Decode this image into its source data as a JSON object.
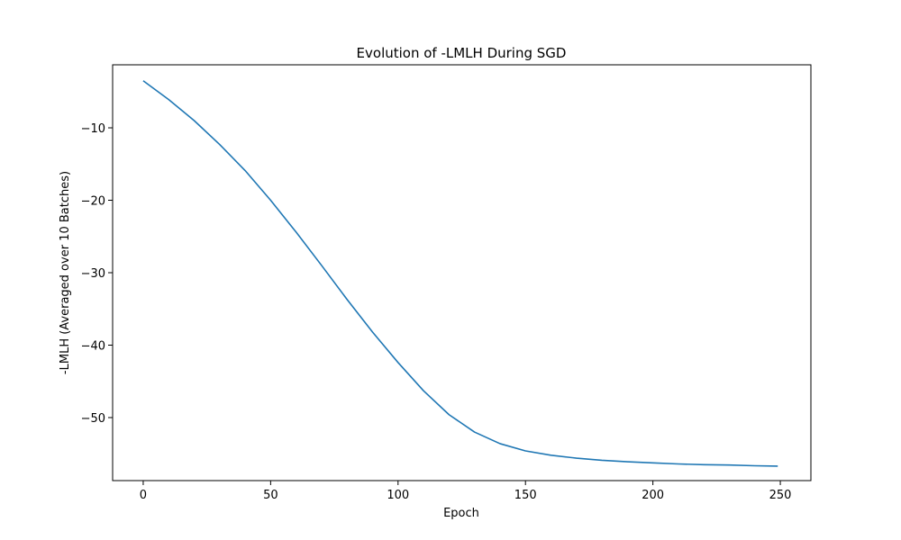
{
  "chart_data": {
    "type": "line",
    "title": "Evolution of -LMLH During SGD",
    "xlabel": "Epoch",
    "ylabel": "-LMLH (Averaged over 10 Batches)",
    "xlim": [
      -12,
      262
    ],
    "ylim": [
      -58.7,
      -1.3
    ],
    "xticks": [
      0,
      50,
      100,
      150,
      200,
      250
    ],
    "yticks": [
      -10,
      -20,
      -30,
      -40,
      -50
    ],
    "grid": false,
    "series": [
      {
        "color": "#1f77b4",
        "x": [
          0,
          10,
          20,
          30,
          40,
          50,
          60,
          70,
          80,
          90,
          100,
          110,
          120,
          130,
          140,
          150,
          160,
          170,
          180,
          190,
          200,
          210,
          220,
          230,
          240,
          249
        ],
        "y": [
          -3.5,
          -6.1,
          -9.0,
          -12.3,
          -15.9,
          -20.0,
          -24.4,
          -29.0,
          -33.7,
          -38.2,
          -42.4,
          -46.3,
          -49.6,
          -52.0,
          -53.6,
          -54.6,
          -55.2,
          -55.6,
          -55.9,
          -56.1,
          -56.25,
          -56.4,
          -56.5,
          -56.55,
          -56.65,
          -56.7
        ]
      }
    ]
  }
}
